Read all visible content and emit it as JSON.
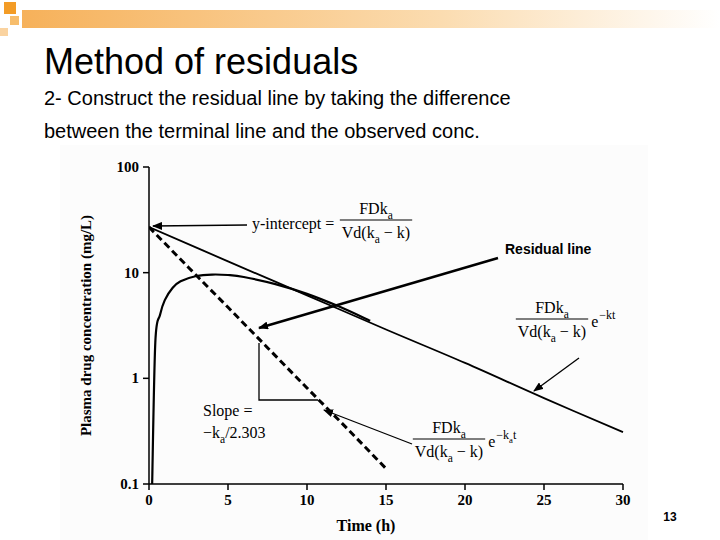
{
  "slide": {
    "title": "Method of residuals",
    "subtitle": [
      "2- Construct the residual line by taking the difference",
      "between the terminal line and the observed conc."
    ],
    "page_number": 13
  },
  "chart_data": {
    "type": "line",
    "xlabel": "Time (h)",
    "ylabel": "Plasma drug concentration (mg/L)",
    "log": "y",
    "grid": false,
    "xlim": [
      0,
      30
    ],
    "ylim": [
      0.1,
      100
    ],
    "xticks": [
      0,
      5,
      10,
      15,
      20,
      25,
      30
    ],
    "yticks": [
      0.1,
      1,
      10,
      100
    ],
    "series": [
      {
        "x": [
          0.2,
          0.4,
          0.7,
          1,
          1.5,
          2,
          3,
          4,
          5,
          6,
          8,
          10,
          12,
          14
        ],
        "values": [
          0.1,
          2.2,
          4,
          5.5,
          7.2,
          8.3,
          9.3,
          9.6,
          9.5,
          9.1,
          7.8,
          6.3,
          4.8,
          3.5
        ],
        "color": "#000000",
        "line_style": "solid"
      },
      {
        "x": [
          0,
          5,
          10,
          15,
          20,
          25,
          30
        ],
        "values": [
          27,
          12.8,
          6.1,
          2.9,
          1.4,
          0.65,
          0.31
        ],
        "color": "#000000",
        "line_style": "solid"
      },
      {
        "x": [
          0,
          2.5,
          5,
          7.5,
          10,
          12.5,
          15
        ],
        "values": [
          27,
          11.2,
          4.7,
          1.95,
          0.81,
          0.34,
          0.14
        ],
        "color": "#000000",
        "line_style": "dashed"
      }
    ],
    "annotations": [
      {
        "text": "y-intercept =",
        "fraction": [
          "FDka",
          "Vd(ka − k)"
        ]
      },
      {
        "text": "Residual line"
      },
      {
        "fraction": [
          "FDka",
          "Vd(ka − k)"
        ],
        "factor": "e",
        "exponent": "−kt"
      },
      {
        "text": "Slope =",
        "value_text": "−ka/2.303"
      },
      {
        "fraction": [
          "FDka",
          "Vd(ka − k)"
        ],
        "factor": "e",
        "exponent": "−kat"
      }
    ]
  }
}
